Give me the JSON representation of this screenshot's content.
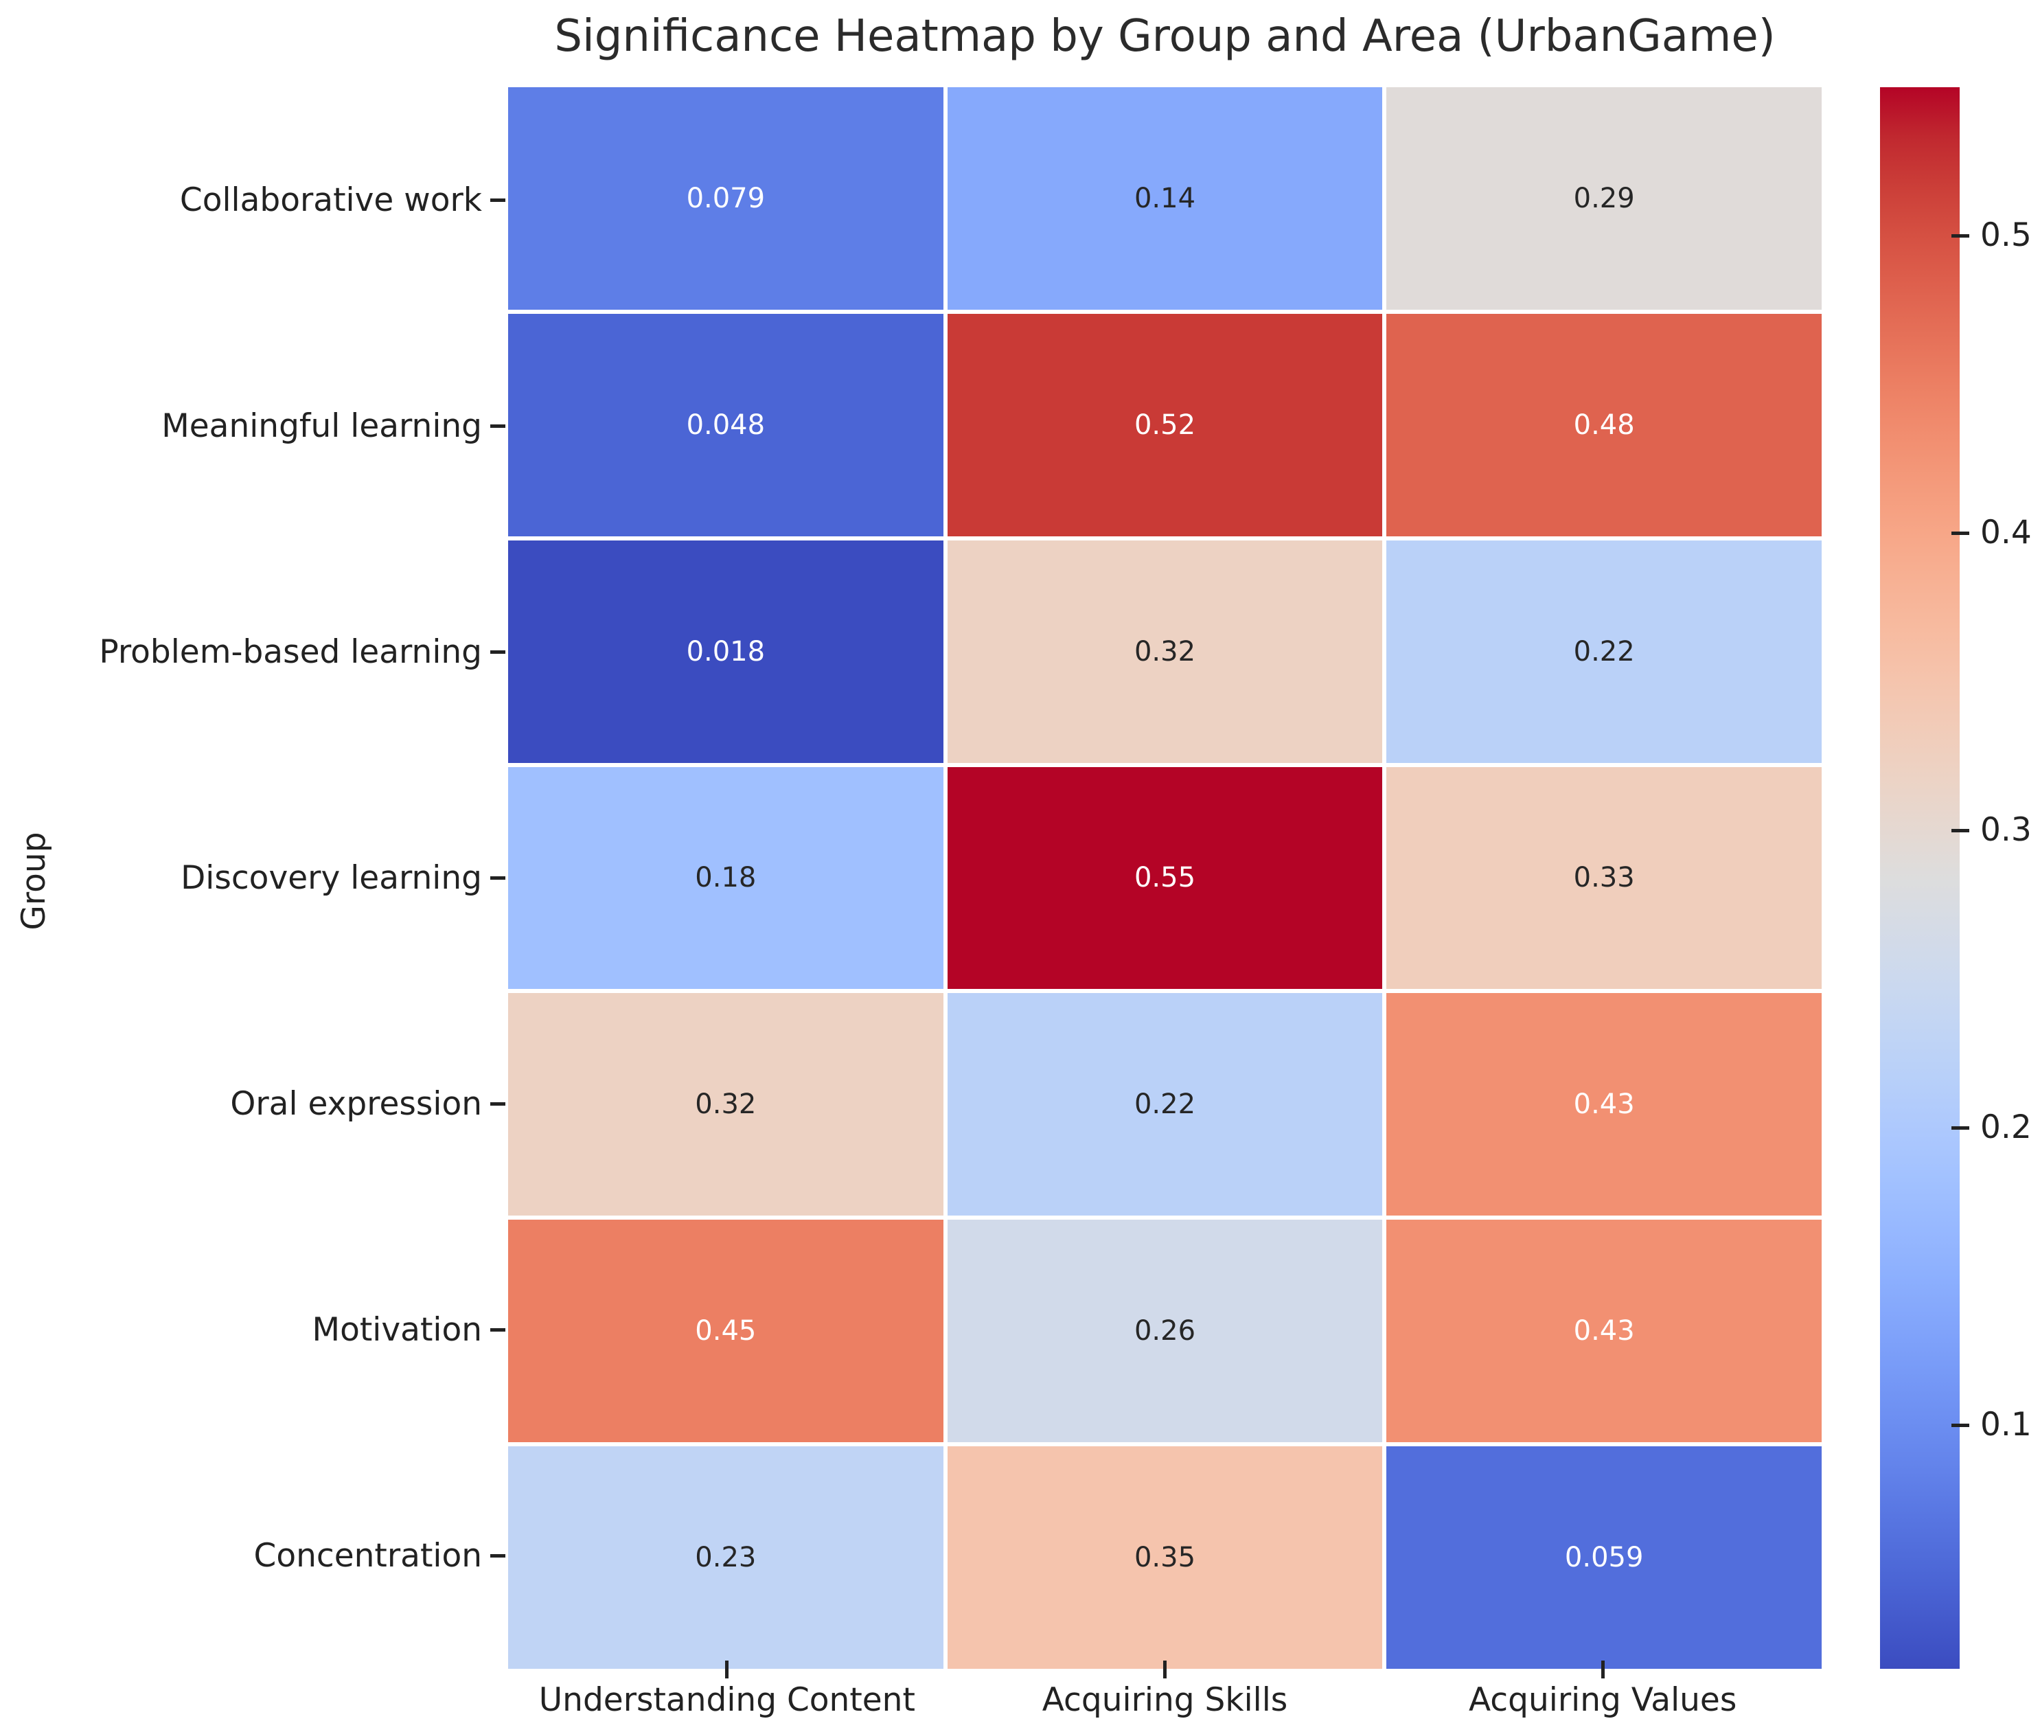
{
  "chart_data": {
    "type": "heatmap",
    "title": "Significance Heatmap by Group and Area (UrbanGame)",
    "ylabel": "Group",
    "xlabel": "",
    "rows": [
      "Collaborative work",
      "Meaningful learning",
      "Problem-based learning",
      "Discovery learning",
      "Oral expression",
      "Motivation",
      "Concentration"
    ],
    "columns": [
      "Understanding Content",
      "Acquiring Skills",
      "Acquiring Values"
    ],
    "values": [
      [
        0.079,
        0.14,
        0.29
      ],
      [
        0.048,
        0.52,
        0.48
      ],
      [
        0.018,
        0.32,
        0.22
      ],
      [
        0.18,
        0.55,
        0.33
      ],
      [
        0.32,
        0.22,
        0.43
      ],
      [
        0.45,
        0.26,
        0.43
      ],
      [
        0.23,
        0.35,
        0.059
      ]
    ],
    "annotations": [
      [
        "0.079",
        "0.14",
        "0.29"
      ],
      [
        "0.048",
        "0.52",
        "0.48"
      ],
      [
        "0.018",
        "0.32",
        "0.22"
      ],
      [
        "0.18",
        "0.55",
        "0.33"
      ],
      [
        "0.32",
        "0.22",
        "0.43"
      ],
      [
        "0.45",
        "0.26",
        "0.43"
      ],
      [
        "0.23",
        "0.35",
        "0.059"
      ]
    ],
    "annotation_text_colors": [
      [
        "white",
        "dark",
        "dark"
      ],
      [
        "white",
        "white",
        "white"
      ],
      [
        "white",
        "dark",
        "dark"
      ],
      [
        "dark",
        "white",
        "dark"
      ],
      [
        "dark",
        "dark",
        "white"
      ],
      [
        "white",
        "dark",
        "white"
      ],
      [
        "dark",
        "dark",
        "white"
      ]
    ],
    "colormap": "coolwarm",
    "vmin": 0.018,
    "vmax": 0.55,
    "colorbar_ticks": [
      0.1,
      0.2,
      0.3,
      0.4,
      0.5
    ],
    "colorbar_tick_labels": [
      "0.1",
      "0.2",
      "0.3",
      "0.4",
      "0.5"
    ],
    "colormap_endpoints": {
      "low": "#3b4cc0",
      "mid": "#dddddd",
      "high": "#b40426"
    },
    "grid_line_color": "#ffffff",
    "background_color": "#ffffff",
    "dark_text_color": "#262626",
    "light_text_color": "#ffffff"
  }
}
